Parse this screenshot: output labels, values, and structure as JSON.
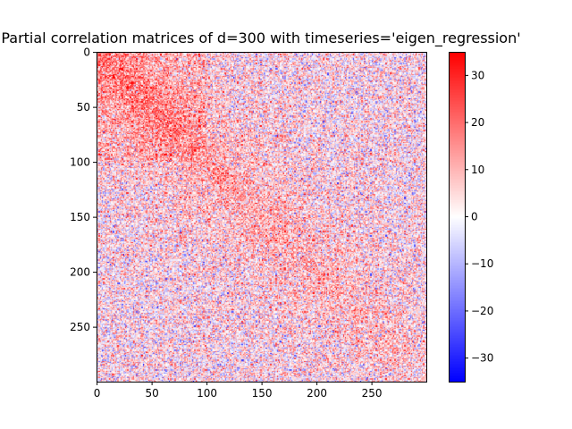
{
  "chart_data": {
    "type": "heatmap",
    "title": "Partial correlation matrices of d=300 with timeseries='eigen_regression'",
    "matrix_size": 300,
    "colormap": "bwr",
    "xlim": [
      0,
      299
    ],
    "ylim": [
      299,
      0
    ],
    "x_ticks": [
      0,
      50,
      100,
      150,
      200,
      250
    ],
    "y_ticks": [
      0,
      50,
      100,
      150,
      200,
      250
    ],
    "colorbar": {
      "min": -35,
      "max": 35,
      "ticks": [
        -30,
        -20,
        -10,
        0,
        10,
        20,
        30
      ],
      "tick_labels": [
        "−30",
        "−20",
        "−10",
        "0",
        "10",
        "20",
        "30"
      ]
    }
  }
}
